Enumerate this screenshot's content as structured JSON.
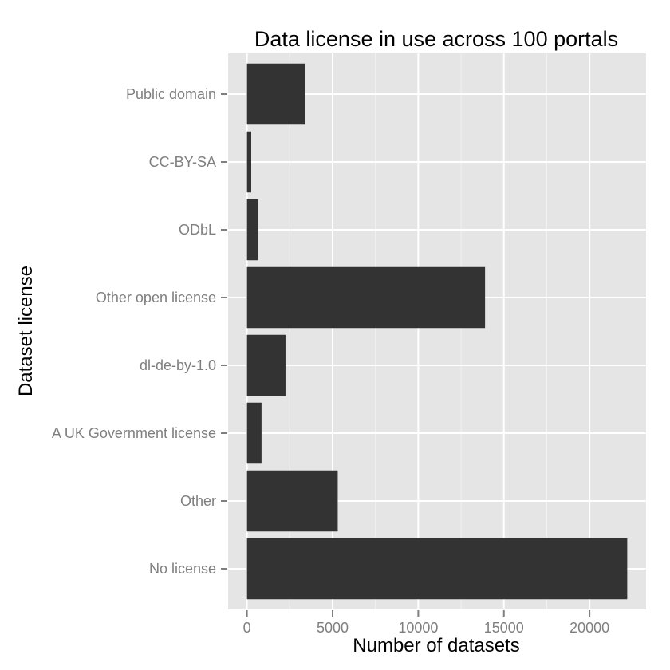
{
  "chart_data": {
    "type": "bar",
    "orientation": "horizontal",
    "title": "Data license in use across 100 portals",
    "xlabel": "Number of datasets",
    "ylabel": "Dataset license",
    "categories": [
      "Public domain",
      "CC-BY-SA",
      "ODbL",
      "Other open license",
      "dl-de-by-1.0",
      "A UK Government license",
      "Other",
      "No license"
    ],
    "values": [
      3400,
      250,
      650,
      13900,
      2250,
      850,
      5300,
      22200
    ],
    "xlim": [
      -1100,
      23300
    ],
    "x_ticks": [
      0,
      5000,
      10000,
      15000,
      20000
    ],
    "grid": true,
    "legend": "none",
    "colors": {
      "panel": "#e5e5e5",
      "grid_major": "#ffffff",
      "grid_minor": "#f2f2f2",
      "bar": "#333333",
      "tick_text": "#7f7f7f"
    }
  }
}
